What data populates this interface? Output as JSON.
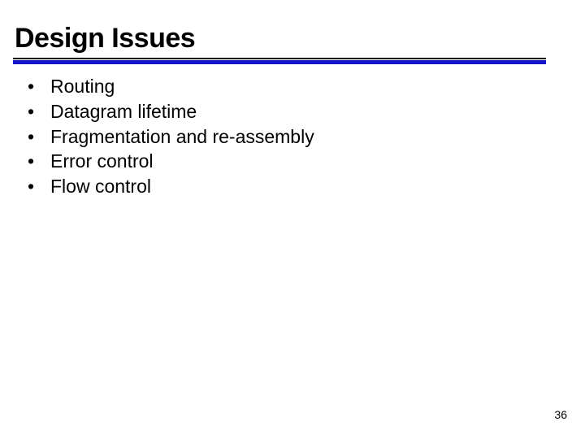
{
  "slide": {
    "title": "Design Issues",
    "title_fontsize": 34,
    "title_fontweight": 900,
    "title_color": "#000000",
    "underline_thin_color": "#000000",
    "underline_color": "#1414c8",
    "background_color": "#ffffff",
    "bullets": [
      "Routing",
      "Datagram lifetime",
      "Fragmentation and re-assembly",
      "Error control",
      "Flow control"
    ],
    "bullet_fontsize": 23,
    "bullet_color": "#000000",
    "bullet_glyph": "•",
    "page_number": "36",
    "page_number_fontsize": 14,
    "page_number_color": "#000000"
  }
}
